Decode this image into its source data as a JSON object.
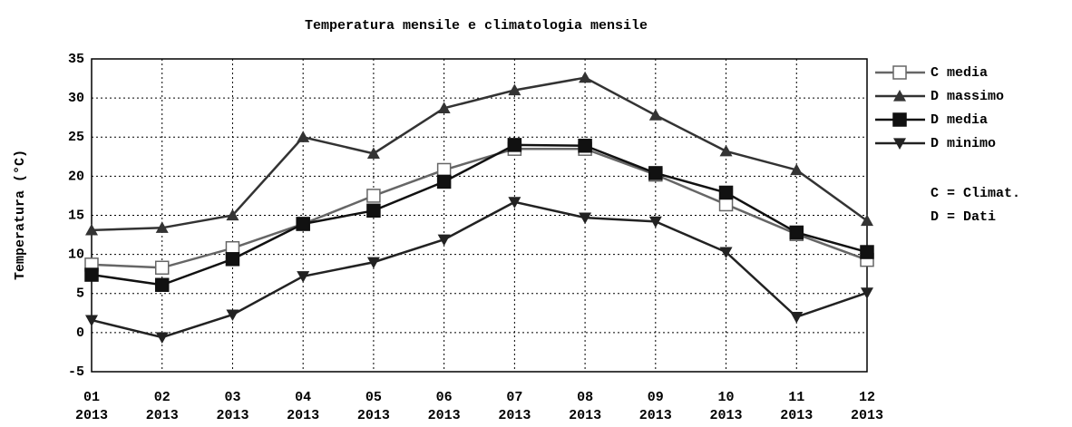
{
  "chart_data": {
    "type": "line",
    "title": "Temperatura mensile e climatologia mensile",
    "y_label": "Temperatura (°C)",
    "categories": [
      "01",
      "02",
      "03",
      "04",
      "05",
      "06",
      "07",
      "08",
      "09",
      "10",
      "11",
      "12"
    ],
    "category_years": [
      "2013",
      "2013",
      "2013",
      "2013",
      "2013",
      "2013",
      "2013",
      "2013",
      "2013",
      "2013",
      "2013",
      "2013"
    ],
    "ylim": [
      -5,
      35
    ],
    "yticks": [
      -5,
      0,
      5,
      10,
      15,
      20,
      25,
      30,
      35
    ],
    "grid": true,
    "legend_position": "right",
    "legend_notes": [
      "C = Climat.",
      "D = Dati"
    ],
    "series": [
      {
        "name": "C media",
        "color": "#666666",
        "marker": "square-open",
        "values": [
          8.7,
          8.3,
          10.8,
          13.9,
          17.5,
          20.8,
          23.5,
          23.5,
          20.2,
          16.4,
          12.6,
          9.3
        ]
      },
      {
        "name": "D massimo",
        "color": "#333333",
        "marker": "triangle-up",
        "values": [
          13.1,
          13.4,
          15.0,
          25.0,
          22.9,
          28.7,
          31.0,
          32.6,
          27.8,
          23.2,
          20.8,
          14.3
        ]
      },
      {
        "name": "D media",
        "color": "#111111",
        "marker": "square",
        "values": [
          7.4,
          6.1,
          9.4,
          13.9,
          15.6,
          19.3,
          24.0,
          23.9,
          20.4,
          17.9,
          12.8,
          10.3
        ]
      },
      {
        "name": "D minimo",
        "color": "#222222",
        "marker": "triangle-down",
        "values": [
          1.6,
          -0.6,
          2.3,
          7.2,
          9.0,
          11.9,
          16.7,
          14.7,
          14.2,
          10.3,
          2.0,
          5.1
        ]
      }
    ]
  }
}
